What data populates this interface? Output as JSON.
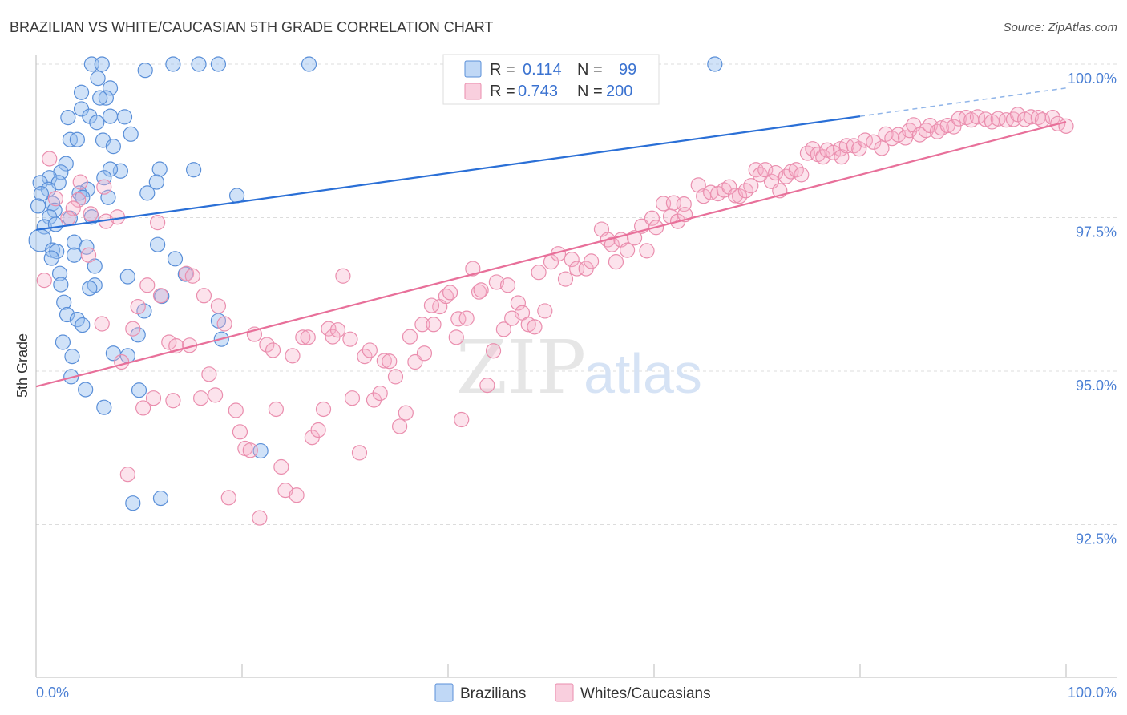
{
  "chart_data": {
    "type": "scatter",
    "title": "BRAZILIAN VS WHITE/CAUCASIAN 5TH GRADE CORRELATION CHART",
    "source": "Source: ZipAtlas.com",
    "xlabel": "",
    "ylabel": "5th Grade",
    "xlim": [
      0,
      100
    ],
    "ylim": [
      90,
      100
    ],
    "x_tick_labels": [
      "0.0%",
      "100.0%"
    ],
    "y_ticks": [
      {
        "value": 100,
        "label": "100.0%"
      },
      {
        "value": 97.5,
        "label": "97.5%"
      },
      {
        "value": 95,
        "label": "95.0%"
      },
      {
        "value": 92.5,
        "label": "92.5%"
      }
    ],
    "grid": true,
    "legend_position": "top-center",
    "legend": [
      {
        "r_label": "R =",
        "r": "0.114",
        "n_label": "N =",
        "n": "99"
      },
      {
        "r_label": "R =",
        "r": "0.743",
        "n_label": "N =",
        "n": "200"
      }
    ],
    "watermark": "ZIPatlas",
    "series": [
      {
        "name": "Brazilians",
        "color": "#5a8fd8",
        "trend": {
          "x0": 0,
          "y0": 97.3,
          "x_solid_end": 80,
          "y_solid_end": 99.15,
          "x1": 100,
          "y1": 99.61
        },
        "points": [
          [
            5.4,
            100
          ],
          [
            6.4,
            100
          ],
          [
            10.6,
            99.9
          ],
          [
            13.3,
            100
          ],
          [
            15.8,
            100
          ],
          [
            17.7,
            100
          ],
          [
            26.5,
            100
          ],
          [
            65.9,
            100
          ],
          [
            6.0,
            99.77
          ],
          [
            7.2,
            99.61
          ],
          [
            4.4,
            99.54
          ],
          [
            6.8,
            99.45
          ],
          [
            6.2,
            99.45
          ],
          [
            4.4,
            99.27
          ],
          [
            3.1,
            99.13
          ],
          [
            5.2,
            99.15
          ],
          [
            7.2,
            99.15
          ],
          [
            8.6,
            99.14
          ],
          [
            5.9,
            99.05
          ],
          [
            9.2,
            98.86
          ],
          [
            3.3,
            98.77
          ],
          [
            4.0,
            98.77
          ],
          [
            6.5,
            98.76
          ],
          [
            7.5,
            98.66
          ],
          [
            2.9,
            98.38
          ],
          [
            8.2,
            98.26
          ],
          [
            12.0,
            98.29
          ],
          [
            15.3,
            98.28
          ],
          [
            7.2,
            98.29
          ],
          [
            6.6,
            98.15
          ],
          [
            2.4,
            98.24
          ],
          [
            1.3,
            98.15
          ],
          [
            0.4,
            98.07
          ],
          [
            2.2,
            98.07
          ],
          [
            11.7,
            98.08
          ],
          [
            5.0,
            97.96
          ],
          [
            1.2,
            97.96
          ],
          [
            0.5,
            97.89
          ],
          [
            4.2,
            97.9
          ],
          [
            4.5,
            97.83
          ],
          [
            7.0,
            97.83
          ],
          [
            10.8,
            97.9
          ],
          [
            19.5,
            97.86
          ],
          [
            1.6,
            97.73
          ],
          [
            1.8,
            97.62
          ],
          [
            0.2,
            97.69
          ],
          [
            1.3,
            97.51
          ],
          [
            3.3,
            97.49
          ],
          [
            5.4,
            97.51
          ],
          [
            0.8,
            97.35
          ],
          [
            1.9,
            97.39
          ],
          [
            0.4,
            97.13
          ],
          [
            3.7,
            97.1
          ],
          [
            4.9,
            97.02
          ],
          [
            11.8,
            97.06
          ],
          [
            1.6,
            96.97
          ],
          [
            2.0,
            96.95
          ],
          [
            3.7,
            96.89
          ],
          [
            13.5,
            96.83
          ],
          [
            1.5,
            96.84
          ],
          [
            5.7,
            96.71
          ],
          [
            2.3,
            96.59
          ],
          [
            14.5,
            96.58
          ],
          [
            8.9,
            96.54
          ],
          [
            2.4,
            96.41
          ],
          [
            5.7,
            96.4
          ],
          [
            5.2,
            96.35
          ],
          [
            12.2,
            96.22
          ],
          [
            2.7,
            96.12
          ],
          [
            10.5,
            95.98
          ],
          [
            3.0,
            95.92
          ],
          [
            4.0,
            95.84
          ],
          [
            4.5,
            95.75
          ],
          [
            17.7,
            95.82
          ],
          [
            9.9,
            95.59
          ],
          [
            18.0,
            95.52
          ],
          [
            2.6,
            95.47
          ],
          [
            7.5,
            95.29
          ],
          [
            8.9,
            95.25
          ],
          [
            3.5,
            95.24
          ],
          [
            3.4,
            94.91
          ],
          [
            4.8,
            94.7
          ],
          [
            10.0,
            94.69
          ],
          [
            6.6,
            94.41
          ],
          [
            21.8,
            93.7
          ],
          [
            9.4,
            92.85
          ],
          [
            12.1,
            92.93
          ]
        ]
      },
      {
        "name": "Whites/Caucasians",
        "color": "#ea8eae",
        "trend": {
          "x0": 0,
          "y0": 94.75,
          "x1": 100,
          "y1": 99.06
        },
        "points": [
          [
            1.3,
            98.46
          ],
          [
            4.3,
            98.08
          ],
          [
            4.1,
            97.79
          ],
          [
            6.6,
            98.0
          ],
          [
            1.9,
            97.81
          ],
          [
            3.6,
            97.65
          ],
          [
            3.1,
            97.49
          ],
          [
            5.3,
            97.56
          ],
          [
            6.8,
            97.44
          ],
          [
            7.9,
            97.51
          ],
          [
            11.8,
            97.42
          ],
          [
            5.1,
            96.89
          ],
          [
            0.8,
            96.48
          ],
          [
            14.6,
            96.59
          ],
          [
            15.2,
            96.55
          ],
          [
            10.8,
            96.4
          ],
          [
            12.1,
            96.23
          ],
          [
            16.3,
            96.23
          ],
          [
            9.9,
            96.05
          ],
          [
            17.7,
            96.06
          ],
          [
            6.4,
            95.77
          ],
          [
            9.4,
            95.69
          ],
          [
            12.9,
            95.47
          ],
          [
            14.9,
            95.42
          ],
          [
            13.6,
            95.41
          ],
          [
            18.3,
            95.77
          ],
          [
            21.2,
            95.6
          ],
          [
            22.4,
            95.43
          ],
          [
            23.0,
            95.34
          ],
          [
            24.9,
            95.25
          ],
          [
            25.9,
            95.55
          ],
          [
            26.4,
            95.55
          ],
          [
            28.4,
            95.69
          ],
          [
            28.8,
            95.56
          ],
          [
            29.3,
            95.67
          ],
          [
            30.5,
            95.52
          ],
          [
            31.9,
            95.24
          ],
          [
            32.4,
            95.34
          ],
          [
            33.8,
            95.17
          ],
          [
            34.3,
            95.16
          ],
          [
            34.9,
            94.91
          ],
          [
            36.3,
            95.56
          ],
          [
            37.5,
            95.76
          ],
          [
            36.8,
            95.15
          ],
          [
            37.7,
            95.29
          ],
          [
            38.6,
            95.76
          ],
          [
            39.2,
            96.05
          ],
          [
            38.4,
            96.07
          ],
          [
            39.8,
            96.22
          ],
          [
            40.2,
            96.28
          ],
          [
            41.0,
            95.85
          ],
          [
            40.8,
            95.55
          ],
          [
            41.8,
            95.86
          ],
          [
            43.0,
            96.29
          ],
          [
            43.2,
            96.32
          ],
          [
            44.4,
            95.33
          ],
          [
            44.7,
            96.45
          ],
          [
            45.8,
            96.4
          ],
          [
            45.4,
            95.68
          ],
          [
            46.8,
            96.11
          ],
          [
            47.2,
            95.95
          ],
          [
            46.2,
            95.86
          ],
          [
            47.8,
            95.76
          ],
          [
            48.4,
            95.72
          ],
          [
            49.4,
            95.98
          ],
          [
            42.4,
            96.67
          ],
          [
            29.8,
            96.55
          ],
          [
            48.8,
            96.61
          ],
          [
            50.0,
            96.78
          ],
          [
            50.7,
            96.91
          ],
          [
            52.0,
            96.82
          ],
          [
            51.4,
            96.5
          ],
          [
            52.5,
            96.67
          ],
          [
            53.4,
            96.67
          ],
          [
            53.9,
            96.79
          ],
          [
            54.9,
            97.31
          ],
          [
            55.5,
            97.14
          ],
          [
            55.9,
            97.06
          ],
          [
            56.3,
            96.78
          ],
          [
            56.8,
            97.14
          ],
          [
            57.4,
            96.97
          ],
          [
            58.1,
            97.17
          ],
          [
            58.8,
            97.36
          ],
          [
            59.3,
            96.96
          ],
          [
            59.8,
            97.49
          ],
          [
            60.2,
            97.34
          ],
          [
            60.9,
            97.73
          ],
          [
            61.6,
            97.52
          ],
          [
            61.9,
            97.74
          ],
          [
            62.9,
            97.72
          ],
          [
            62.3,
            97.44
          ],
          [
            63.0,
            97.55
          ],
          [
            64.3,
            98.03
          ],
          [
            64.8,
            97.85
          ],
          [
            65.5,
            97.91
          ],
          [
            66.2,
            97.89
          ],
          [
            66.8,
            97.95
          ],
          [
            67.3,
            98.0
          ],
          [
            67.9,
            97.86
          ],
          [
            68.3,
            97.85
          ],
          [
            68.9,
            97.94
          ],
          [
            69.4,
            98.02
          ],
          [
            69.9,
            98.28
          ],
          [
            70.3,
            98.2
          ],
          [
            70.8,
            98.28
          ],
          [
            71.4,
            98.09
          ],
          [
            71.8,
            98.23
          ],
          [
            72.2,
            97.94
          ],
          [
            72.8,
            98.17
          ],
          [
            73.3,
            98.25
          ],
          [
            73.8,
            98.28
          ],
          [
            74.3,
            98.2
          ],
          [
            74.9,
            98.55
          ],
          [
            75.4,
            98.62
          ],
          [
            75.9,
            98.53
          ],
          [
            76.4,
            98.49
          ],
          [
            76.8,
            98.6
          ],
          [
            77.4,
            98.56
          ],
          [
            78.1,
            98.62
          ],
          [
            78.2,
            98.49
          ],
          [
            78.7,
            98.67
          ],
          [
            79.4,
            98.67
          ],
          [
            79.9,
            98.62
          ],
          [
            80.5,
            98.76
          ],
          [
            81.3,
            98.73
          ],
          [
            82.1,
            98.63
          ],
          [
            82.5,
            98.86
          ],
          [
            83.1,
            98.79
          ],
          [
            83.7,
            98.85
          ],
          [
            84.4,
            98.8
          ],
          [
            84.8,
            98.92
          ],
          [
            85.2,
            99.01
          ],
          [
            85.8,
            98.85
          ],
          [
            86.4,
            98.92
          ],
          [
            86.8,
            99.0
          ],
          [
            87.5,
            98.9
          ],
          [
            87.9,
            98.96
          ],
          [
            88.5,
            99.0
          ],
          [
            89.1,
            98.98
          ],
          [
            89.6,
            99.11
          ],
          [
            90.3,
            99.13
          ],
          [
            90.8,
            99.09
          ],
          [
            91.4,
            99.14
          ],
          [
            92.2,
            99.1
          ],
          [
            92.8,
            99.06
          ],
          [
            93.4,
            99.11
          ],
          [
            94.2,
            99.09
          ],
          [
            94.9,
            99.1
          ],
          [
            95.3,
            99.18
          ],
          [
            96.0,
            99.1
          ],
          [
            96.6,
            99.14
          ],
          [
            97.3,
            99.13
          ],
          [
            97.7,
            99.09
          ],
          [
            98.7,
            99.13
          ],
          [
            99.2,
            99.03
          ],
          [
            100,
            98.99
          ],
          [
            8.9,
            93.32
          ],
          [
            10.4,
            94.4
          ],
          [
            11.4,
            94.56
          ],
          [
            13.3,
            94.52
          ],
          [
            16.0,
            94.56
          ],
          [
            17.4,
            94.61
          ],
          [
            16.8,
            94.95
          ],
          [
            19.4,
            94.36
          ],
          [
            19.8,
            94.01
          ],
          [
            20.3,
            93.74
          ],
          [
            20.8,
            93.71
          ],
          [
            18.7,
            92.94
          ],
          [
            21.7,
            92.61
          ],
          [
            23.3,
            94.38
          ],
          [
            23.8,
            93.44
          ],
          [
            24.2,
            93.06
          ],
          [
            25.3,
            92.98
          ],
          [
            26.8,
            93.92
          ],
          [
            27.4,
            94.04
          ],
          [
            27.9,
            94.38
          ],
          [
            31.4,
            93.67
          ],
          [
            30.7,
            94.56
          ],
          [
            32.8,
            94.53
          ],
          [
            33.4,
            94.64
          ],
          [
            35.3,
            94.1
          ],
          [
            35.9,
            94.32
          ],
          [
            41.3,
            94.21
          ],
          [
            43.8,
            94.77
          ],
          [
            8.3,
            95.15
          ]
        ]
      }
    ]
  }
}
